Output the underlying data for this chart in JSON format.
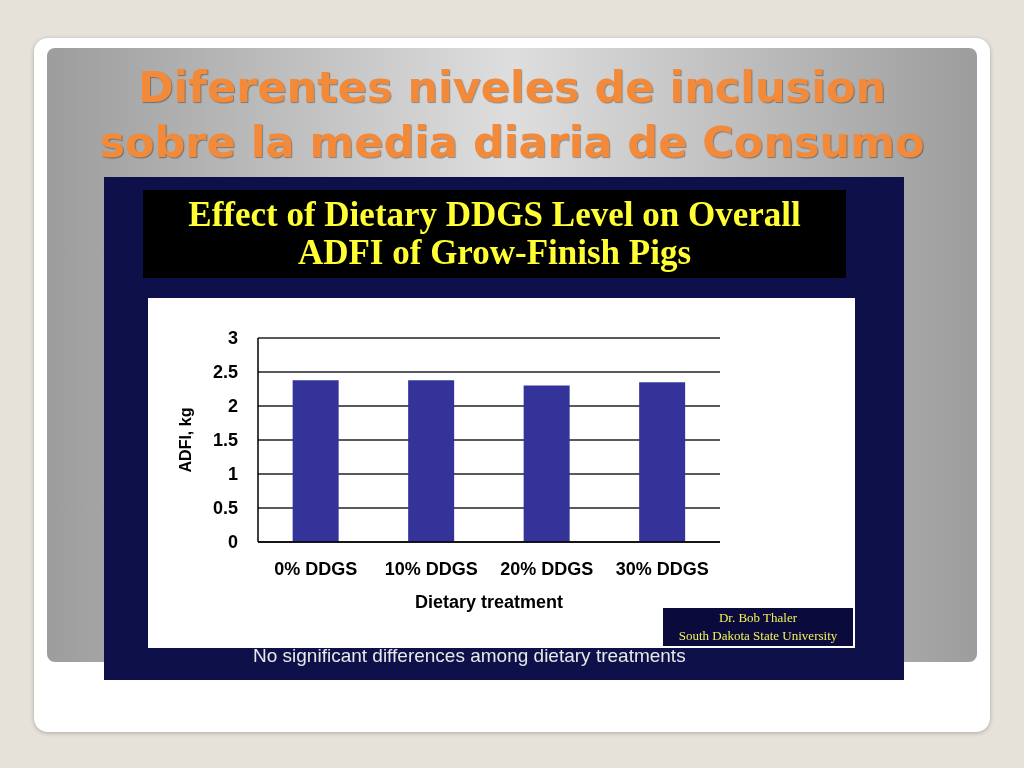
{
  "chart_data": {
    "type": "bar",
    "title": "Diferentes niveles de inclusion sobre la media diaria de Consumo",
    "subtitle": "Effect of Dietary DDGS Level on Overall ADFI of Grow-Finish Pigs",
    "xlabel": "Dietary treatment",
    "ylabel": "ADFI, kg",
    "categories": [
      "0% DDGS",
      "10% DDGS",
      "20% DDGS",
      "30% DDGS"
    ],
    "values": [
      2.38,
      2.38,
      2.3,
      2.35
    ],
    "color": "#333399",
    "ylim": [
      0,
      3
    ],
    "yticks": [
      0,
      0.5,
      1,
      1.5,
      2,
      2.5,
      3
    ],
    "grid": "y",
    "annotations": [
      "Dr. Bob Thaler",
      "South Dakota State University",
      "No significant differences among dietary treatments"
    ]
  }
}
